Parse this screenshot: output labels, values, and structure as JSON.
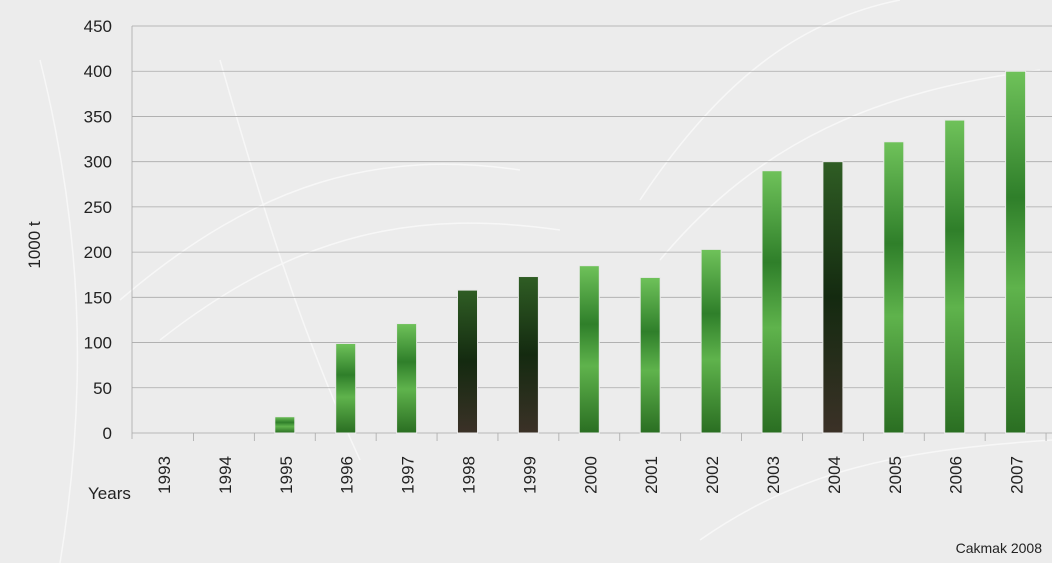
{
  "chart_data": {
    "type": "bar",
    "ylabel": "1000 t",
    "xlabel": "Years",
    "ylim": [
      0,
      450
    ],
    "yticks": [
      0,
      50,
      100,
      150,
      200,
      250,
      300,
      350,
      400,
      450
    ],
    "categories": [
      "1993",
      "1994",
      "1995",
      "1996",
      "1997",
      "1998",
      "1999",
      "2000",
      "2001",
      "2002",
      "2003",
      "2004",
      "2005",
      "2006",
      "2007"
    ],
    "values": [
      0,
      0,
      18,
      99,
      121,
      158,
      173,
      185,
      172,
      203,
      290,
      300,
      322,
      346,
      400
    ],
    "grid": true,
    "legend": "none",
    "bar_color": "#3a8a2e",
    "source": "Cakmak 2008"
  }
}
